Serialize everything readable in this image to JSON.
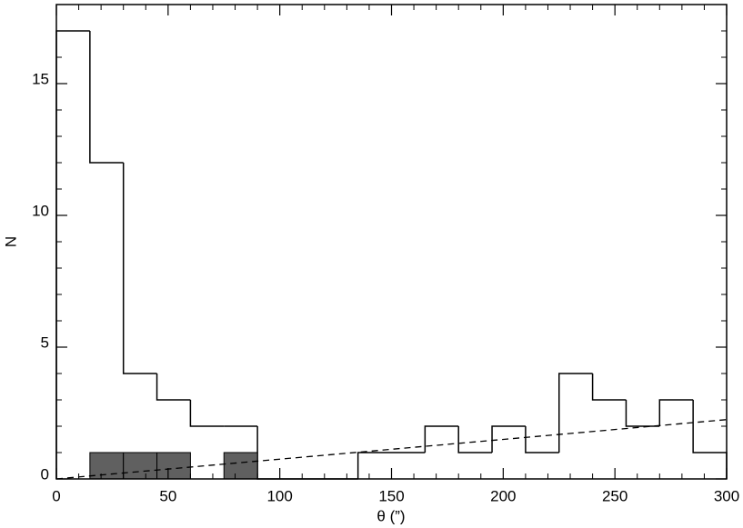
{
  "chart_data": {
    "type": "histogram",
    "xlabel": "θ (”)",
    "ylabel": "N",
    "bins": [
      0,
      15,
      30,
      45,
      60,
      75,
      90,
      105,
      120,
      135,
      150,
      165,
      180,
      195,
      210,
      225,
      240,
      255,
      270,
      285,
      300
    ],
    "series": [
      {
        "style": "step",
        "color": "#000000",
        "values": [
          17,
          12,
          4,
          3,
          2,
          2,
          0,
          0,
          0,
          1,
          1,
          2,
          1,
          2,
          1,
          4,
          3,
          2,
          3,
          1
        ]
      },
      {
        "style": "filled",
        "color": "#606060",
        "values": [
          0,
          1,
          1,
          1,
          0,
          1,
          0,
          0,
          0,
          0,
          0,
          0,
          0,
          0,
          0,
          0,
          0,
          0,
          0,
          0
        ]
      }
    ],
    "lines": [
      {
        "x": [
          0,
          300
        ],
        "values": [
          0,
          2.25
        ],
        "color": "#000000",
        "dashed": true
      }
    ],
    "xlim": [
      0,
      300
    ],
    "ylim": [
      0,
      18
    ],
    "xticks": [
      0,
      50,
      100,
      150,
      200,
      250,
      300
    ],
    "yticks": [
      0,
      5,
      10,
      15
    ]
  }
}
